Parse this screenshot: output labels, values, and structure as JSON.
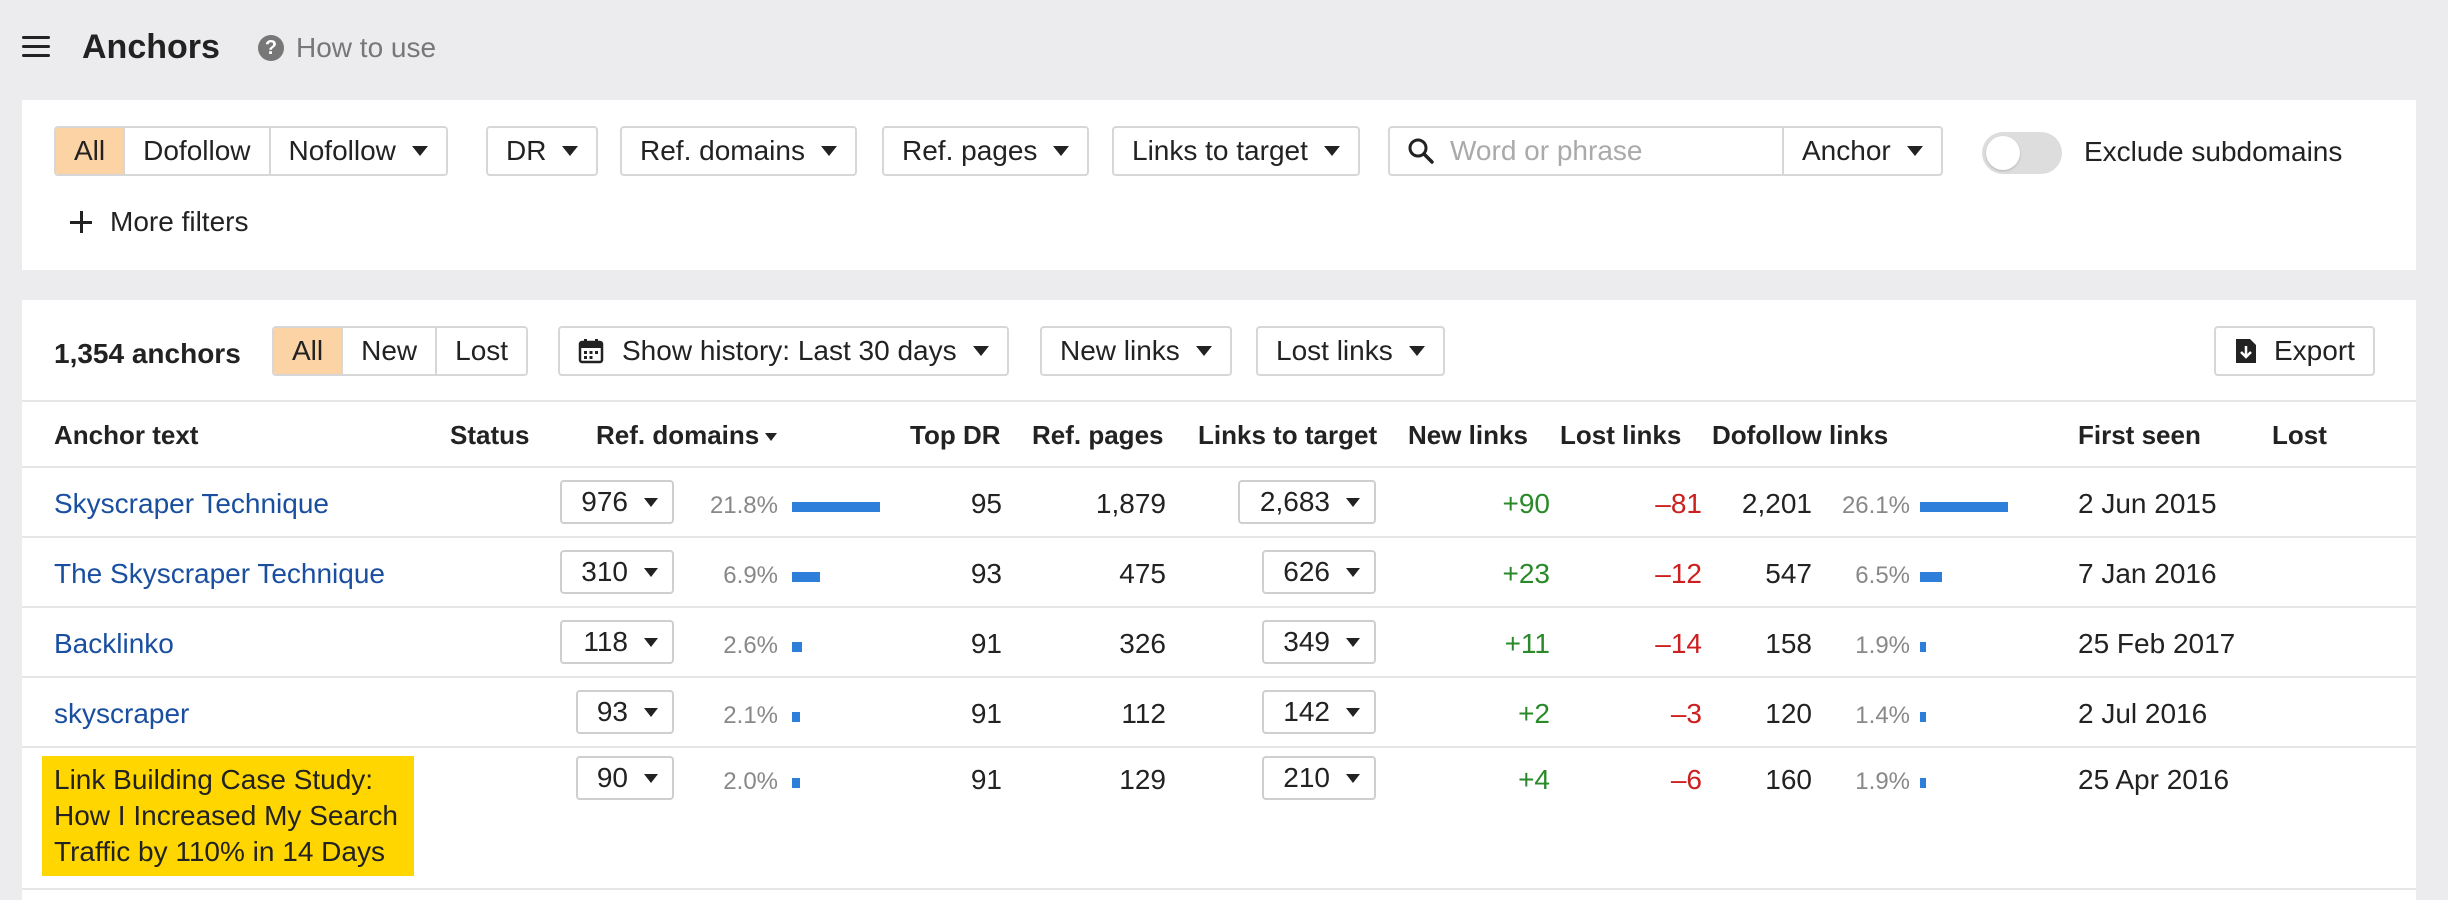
{
  "header": {
    "title": "Anchors",
    "help": "How to use"
  },
  "filters": {
    "link_types": [
      "All",
      "Dofollow",
      "Nofollow"
    ],
    "dr": "DR",
    "ref_domains": "Ref. domains",
    "ref_pages": "Ref. pages",
    "links_to_target": "Links to target",
    "search_placeholder": "Word or phrase",
    "search_scope": "Anchor",
    "exclude_subdomains": "Exclude subdomains",
    "more_filters": "More filters"
  },
  "toolbar": {
    "count": "1,354 anchors",
    "tabs": [
      "All",
      "New",
      "Lost"
    ],
    "history": "Show history: Last 30 days",
    "new_links": "New links",
    "lost_links": "Lost links",
    "export": "Export"
  },
  "columns": [
    "Anchor text",
    "Status",
    "Ref. domains",
    "Top DR",
    "Ref. pages",
    "Links to target",
    "New links",
    "Lost links",
    "Dofollow links",
    "First seen",
    "Lost"
  ],
  "rows": [
    {
      "anchor": "Skyscraper Technique",
      "ref_domains": "976",
      "rd_pct": "21.8%",
      "rd_frac": 0.218,
      "top_dr": "95",
      "ref_pages": "1,879",
      "links_to_target": "2,683",
      "new_links": "+90",
      "lost_links": "–81",
      "dofollow": "2,201",
      "df_pct": "26.1%",
      "df_frac": 0.261,
      "first_seen": "2 Jun 2015"
    },
    {
      "anchor": "The Skyscraper Technique",
      "ref_domains": "310",
      "rd_pct": "6.9%",
      "rd_frac": 0.069,
      "top_dr": "93",
      "ref_pages": "475",
      "links_to_target": "626",
      "new_links": "+23",
      "lost_links": "–12",
      "dofollow": "547",
      "df_pct": "6.5%",
      "df_frac": 0.065,
      "first_seen": "7 Jan 2016"
    },
    {
      "anchor": "Backlinko",
      "ref_domains": "118",
      "rd_pct": "2.6%",
      "rd_frac": 0.026,
      "top_dr": "91",
      "ref_pages": "326",
      "links_to_target": "349",
      "new_links": "+11",
      "lost_links": "–14",
      "dofollow": "158",
      "df_pct": "1.9%",
      "df_frac": 0.019,
      "first_seen": "25 Feb 2017"
    },
    {
      "anchor": "skyscraper",
      "ref_domains": "93",
      "rd_pct": "2.1%",
      "rd_frac": 0.021,
      "top_dr": "91",
      "ref_pages": "112",
      "links_to_target": "142",
      "new_links": "+2",
      "lost_links": "–3",
      "dofollow": "120",
      "df_pct": "1.4%",
      "df_frac": 0.014,
      "first_seen": "2 Jul 2016"
    },
    {
      "anchor": "Link Building Case Study: How I Increased My Search Traffic by 110% in 14 Days",
      "ref_domains": "90",
      "rd_pct": "2.0%",
      "rd_frac": 0.02,
      "top_dr": "91",
      "ref_pages": "129",
      "links_to_target": "210",
      "new_links": "+4",
      "lost_links": "–6",
      "dofollow": "160",
      "df_pct": "1.9%",
      "df_frac": 0.019,
      "first_seen": "25 Apr 2016"
    }
  ]
}
